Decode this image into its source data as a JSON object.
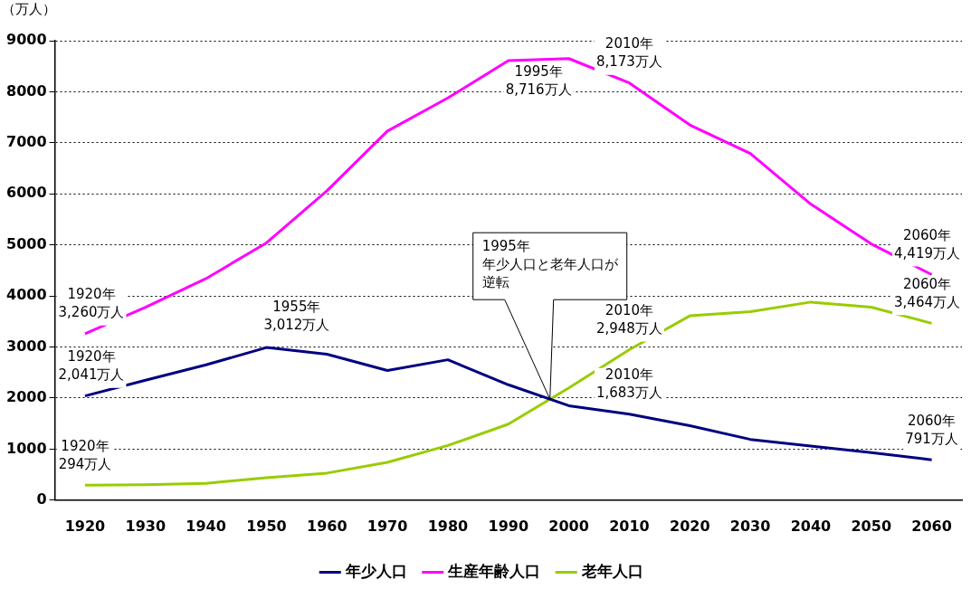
{
  "chart_data": {
    "type": "line",
    "ylabel": "（万人）",
    "x": [
      1920,
      1930,
      1940,
      1950,
      1960,
      1970,
      1980,
      1990,
      2000,
      2010,
      2020,
      2030,
      2040,
      2050,
      2060
    ],
    "xlim": [
      1915,
      2065
    ],
    "xticks": [
      1920,
      1930,
      1940,
      1950,
      1960,
      1970,
      1980,
      1990,
      2000,
      2010,
      2020,
      2030,
      2040,
      2050,
      2060
    ],
    "ylim": [
      0,
      9000
    ],
    "yticks": [
      0,
      1000,
      2000,
      3000,
      4000,
      5000,
      6000,
      7000,
      8000,
      9000
    ],
    "grid": "y",
    "legend": "bottom",
    "marker": "none",
    "line_style": "solid",
    "series": [
      {
        "name": "年少人口",
        "color": "#000080",
        "values": [
          2041,
          2350,
          2650,
          2990,
          2860,
          2540,
          2750,
          2260,
          1850,
          1683,
          1460,
          1190,
          1060,
          930,
          791
        ]
      },
      {
        "name": "生産年齢人口",
        "color": "#ff00ff",
        "values": [
          3260,
          3780,
          4340,
          5040,
          6060,
          7230,
          7880,
          8610,
          8650,
          8173,
          7350,
          6790,
          5800,
          5020,
          4419
        ]
      },
      {
        "name": "老年人口",
        "color": "#99cc00",
        "values": [
          294,
          300,
          330,
          440,
          530,
          740,
          1070,
          1490,
          2200,
          2948,
          3610,
          3690,
          3880,
          3780,
          3464
        ]
      }
    ],
    "annotations": [
      {
        "text": "1920年\n3,260万人",
        "x": 1920,
        "y": 3260
      },
      {
        "text": "1920年\n2,041万人",
        "x": 1920,
        "y": 2041
      },
      {
        "text": "1920年\n294万人",
        "x": 1920,
        "y": 294
      },
      {
        "text": "1955年\n3,012万人",
        "x": 1955,
        "y": 3012
      },
      {
        "text": "1995年\n8,716万人",
        "x": 1995,
        "y": 8716
      },
      {
        "text": "2010年\n8,173万人",
        "x": 2010,
        "y": 8173
      },
      {
        "text": "2010年\n2,948万人",
        "x": 2010,
        "y": 2948
      },
      {
        "text": "2010年\n1,683万人",
        "x": 2010,
        "y": 1683
      },
      {
        "text": "2060年\n4,419万人",
        "x": 2060,
        "y": 4419
      },
      {
        "text": "2060年\n3,464万人",
        "x": 2060,
        "y": 3464
      },
      {
        "text": "2060年\n791万人",
        "x": 2060,
        "y": 791
      },
      "1995年",
      "年少人口と老年人口が逆転"
    ]
  }
}
